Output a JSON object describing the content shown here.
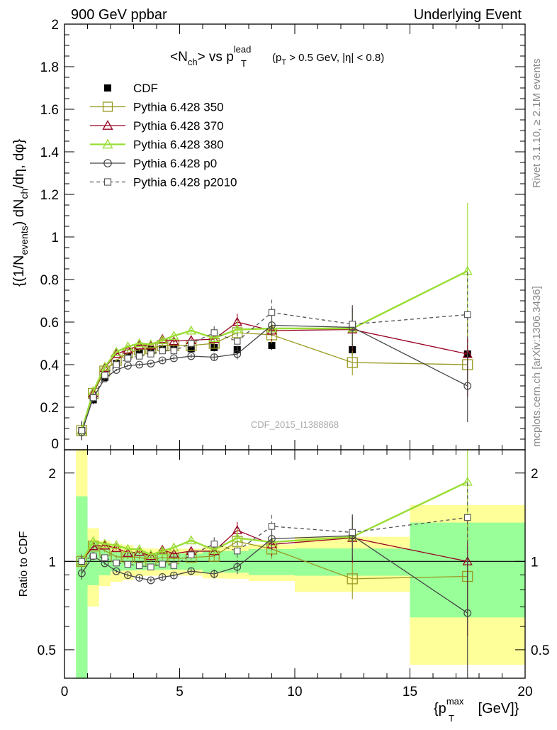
{
  "header": {
    "left_title": "900 GeV ppbar",
    "right_title": "Underlying Event"
  },
  "side_labels": {
    "rivet": "Rivet 3.1.10, ≥ 2.1M events",
    "mcplots": "mcplots.cern.ch [arXiv:1306.3436]"
  },
  "chart_data": {
    "type": "scatter",
    "panels": [
      "main",
      "ratio"
    ],
    "title_main": "<N",
    "title_sub1": "ch",
    "title_mid": "> vs p",
    "title_sup": "lead",
    "title_sub2": "T",
    "title_cuts": "(p",
    "title_cuts_sub": "T",
    "title_cuts_rest": " > 0.5 GeV, |η| < 0.8)",
    "watermark": "CDF_2015_I1388868",
    "ylabel_main": "{(1/N",
    "ylabel_sub1": "events",
    "ylabel_mid": ") dN",
    "ylabel_sub2": "ch",
    "ylabel_end": "/dη, dφ}",
    "ylabel_ratio": "Ratio to CDF",
    "xlabel": "{p",
    "xlabel_sup": "max",
    "xlabel_sub": "T",
    "xlabel_end": " [GeV]}",
    "xlim": [
      0,
      20
    ],
    "ylim_main": [
      0,
      2
    ],
    "ylim_ratio": [
      0.4,
      2.4
    ],
    "ratio_log": true,
    "x_ticks": [
      "0",
      "5",
      "10",
      "15",
      "20"
    ],
    "y_ticks_main": [
      "0",
      "0.2",
      "0.4",
      "0.6",
      "0.8",
      "1",
      "1.2",
      "1.4",
      "1.6",
      "1.8",
      "2"
    ],
    "y_ticks_ratio": [
      "0.5",
      "1",
      "2"
    ],
    "bins": [
      {
        "lo": 0.5,
        "hi": 1.0
      },
      {
        "lo": 1.0,
        "hi": 1.5
      },
      {
        "lo": 1.5,
        "hi": 2.0
      },
      {
        "lo": 2.0,
        "hi": 2.5
      },
      {
        "lo": 2.5,
        "hi": 3.0
      },
      {
        "lo": 3.0,
        "hi": 3.5
      },
      {
        "lo": 3.5,
        "hi": 4.0
      },
      {
        "lo": 4.0,
        "hi": 4.5
      },
      {
        "lo": 4.5,
        "hi": 5.0
      },
      {
        "lo": 5.0,
        "hi": 6.0
      },
      {
        "lo": 6.0,
        "hi": 7.0
      },
      {
        "lo": 7.0,
        "hi": 8.0
      },
      {
        "lo": 8.0,
        "hi": 10.0
      },
      {
        "lo": 10.0,
        "hi": 15.0
      },
      {
        "lo": 15.0,
        "hi": 20.0
      }
    ],
    "x": [
      0.75,
      1.25,
      1.75,
      2.25,
      2.75,
      3.25,
      3.75,
      4.25,
      4.75,
      5.5,
      6.5,
      7.5,
      9.0,
      12.5,
      17.5
    ],
    "data": {
      "name": "CDF",
      "values": [
        0.09,
        0.235,
        0.34,
        0.405,
        0.44,
        0.455,
        0.47,
        0.475,
        0.48,
        0.475,
        0.48,
        0.47,
        0.49,
        0.47,
        0.45
      ],
      "band_inner": [
        0.06,
        0.04,
        0.035,
        0.03,
        0.03,
        0.03,
        0.03,
        0.03,
        0.03,
        0.03,
        0.04,
        0.04,
        0.05,
        0.05,
        0.16
      ],
      "band_outer": [
        0.15,
        0.07,
        0.06,
        0.06,
        0.06,
        0.05,
        0.05,
        0.05,
        0.05,
        0.05,
        0.06,
        0.06,
        0.07,
        0.1,
        0.25
      ]
    },
    "series": [
      {
        "name": "Pythia 6.428 350",
        "color": "#999922",
        "marker": "square",
        "dashed": false,
        "values": [
          0.09,
          0.265,
          0.37,
          0.42,
          0.455,
          0.47,
          0.475,
          0.49,
          0.49,
          0.49,
          0.5,
          0.55,
          0.54,
          0.41,
          0.4
        ],
        "errors": [
          0.005,
          0.005,
          0.005,
          0.006,
          0.008,
          0.008,
          0.008,
          0.01,
          0.01,
          0.01,
          0.02,
          0.03,
          0.04,
          0.06,
          0.1
        ]
      },
      {
        "name": "Pythia 6.428 370",
        "color": "#990022",
        "marker": "triangle",
        "dashed": false,
        "values": [
          0.09,
          0.265,
          0.385,
          0.45,
          0.47,
          0.49,
          0.49,
          0.52,
          0.51,
          0.515,
          0.52,
          0.6,
          0.56,
          0.565,
          0.45
        ],
        "errors": [
          0.005,
          0.005,
          0.005,
          0.006,
          0.008,
          0.008,
          0.008,
          0.01,
          0.01,
          0.01,
          0.02,
          0.04,
          0.05,
          0.1,
          0.2
        ]
      },
      {
        "name": "Pythia 6.428 380",
        "color": "#99dd33",
        "marker": "triangle",
        "dashed": false,
        "values": [
          0.09,
          0.275,
          0.39,
          0.46,
          0.485,
          0.5,
          0.495,
          0.515,
          0.535,
          0.56,
          0.525,
          0.565,
          0.57,
          0.57,
          0.84
        ],
        "errors": [
          0.005,
          0.005,
          0.005,
          0.006,
          0.008,
          0.008,
          0.008,
          0.01,
          0.01,
          0.01,
          0.02,
          0.04,
          0.05,
          0.08,
          0.32
        ]
      },
      {
        "name": "Pythia 6.428 p0",
        "color": "#444444",
        "marker": "circle",
        "dashed": false,
        "values": [
          0.082,
          0.245,
          0.335,
          0.375,
          0.395,
          0.4,
          0.405,
          0.42,
          0.43,
          0.44,
          0.435,
          0.45,
          0.585,
          0.575,
          0.3
        ],
        "errors": [
          0.004,
          0.004,
          0.004,
          0.005,
          0.006,
          0.006,
          0.006,
          0.008,
          0.008,
          0.01,
          0.015,
          0.025,
          0.05,
          0.1,
          0.17
        ]
      },
      {
        "name": "Pythia 6.428 p2010",
        "color": "#555555",
        "marker": "square-small",
        "dashed": true,
        "values": [
          0.09,
          0.245,
          0.35,
          0.4,
          0.43,
          0.44,
          0.45,
          0.465,
          0.465,
          0.5,
          0.55,
          0.51,
          0.645,
          0.59,
          0.635
        ],
        "errors": [
          0.005,
          0.005,
          0.005,
          0.006,
          0.008,
          0.008,
          0.008,
          0.01,
          0.01,
          0.012,
          0.03,
          0.04,
          0.06,
          0.09,
          0.2
        ]
      }
    ],
    "legend": {
      "placement": "top-left",
      "entries": [
        "CDF",
        "Pythia 6.428 350",
        "Pythia 6.428 370",
        "Pythia 6.428 380",
        "Pythia 6.428 p0",
        "Pythia 6.428 p2010"
      ]
    },
    "colors": {
      "band_outer": "#ffff99",
      "band_inner": "#99ff99",
      "data_marker": "#000000"
    }
  }
}
